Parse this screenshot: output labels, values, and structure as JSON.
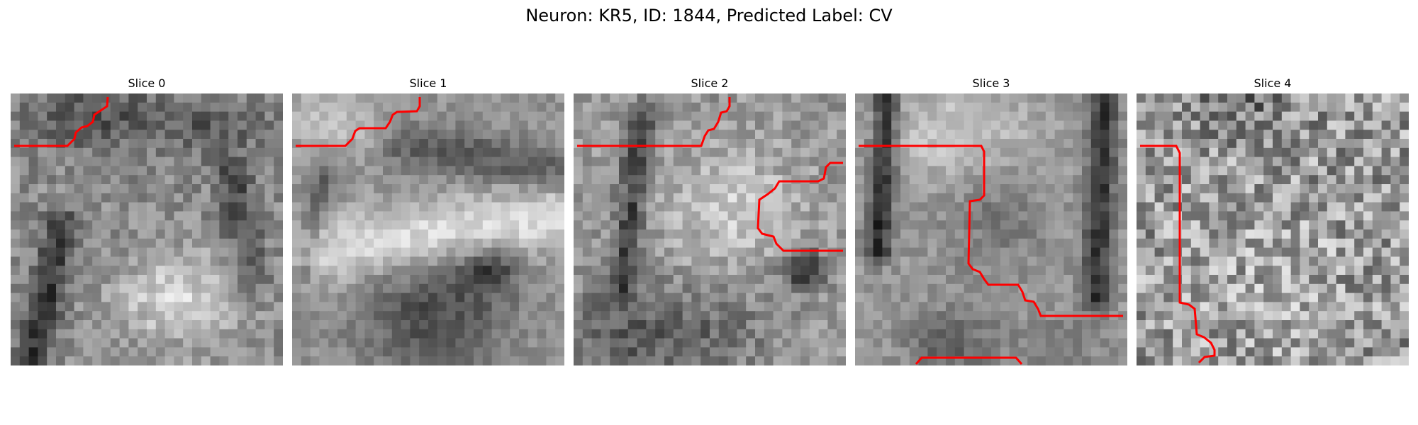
{
  "figure": {
    "title": "Neuron: KR5, ID: 1844, Predicted Label: CV"
  },
  "panels": [
    {
      "title": "Slice 0"
    },
    {
      "title": "Slice 1"
    },
    {
      "title": "Slice 2"
    },
    {
      "title": "Slice 3"
    },
    {
      "title": "Slice 4"
    }
  ],
  "colors": {
    "contour": "#ff0000",
    "background": "#ffffff"
  },
  "image": {
    "colormap": "grayscale",
    "grid_cells_per_side": 30
  }
}
